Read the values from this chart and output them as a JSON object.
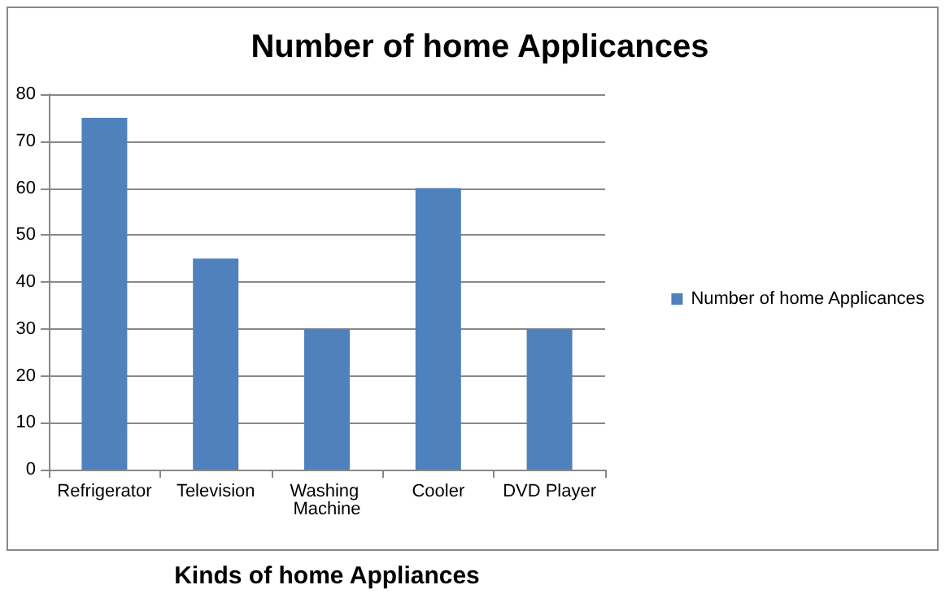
{
  "chart_data": {
    "type": "bar",
    "title": "Number of home Applicances",
    "xlabel": "Kinds of home Appliances",
    "categories": [
      "Refrigerator",
      "Television",
      "Washing Machine",
      "Cooler",
      "DVD Player"
    ],
    "series": [
      {
        "name": "Number of home Applicances",
        "color": "#4f81bd",
        "values": [
          75,
          45,
          30,
          60,
          30
        ]
      }
    ],
    "ylim": [
      0,
      80
    ],
    "yticks": [
      0,
      10,
      20,
      30,
      40,
      50,
      60,
      70,
      80
    ],
    "grid": "y",
    "legend": "right"
  }
}
